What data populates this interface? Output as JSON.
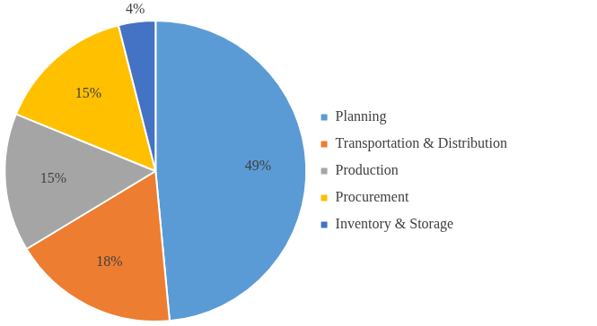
{
  "chart_data": {
    "type": "pie",
    "categories": [
      "Planning",
      "Transportation & Distribution",
      "Production",
      "Procurement",
      "Inventory & Storage"
    ],
    "values": [
      49,
      18,
      15,
      15,
      4
    ],
    "value_labels": [
      "49%",
      "18%",
      "15%",
      "15%",
      "4%"
    ],
    "colors": [
      "#5b9bd5",
      "#ed7d31",
      "#a5a5a5",
      "#ffc000",
      "#4472c4"
    ],
    "data_labels": true,
    "legend": "right"
  }
}
